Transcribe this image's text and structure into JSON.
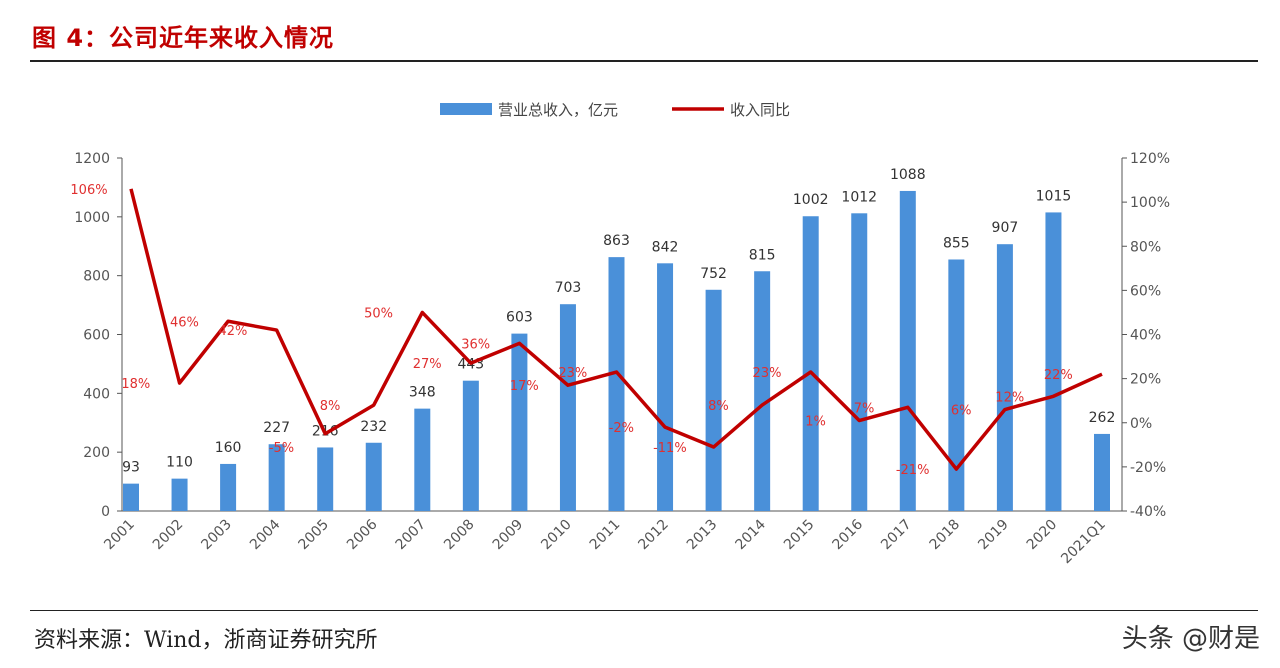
{
  "title": "图 4：公司近年来收入情况",
  "source": "资料来源：Wind，浙商证券研究所",
  "watermark": "头条 @财是",
  "chart_data": {
    "type": "bar+line",
    "categories": [
      "2001",
      "2002",
      "2003",
      "2004",
      "2005",
      "2006",
      "2007",
      "2008",
      "2009",
      "2010",
      "2011",
      "2012",
      "2013",
      "2014",
      "2015",
      "2016",
      "2017",
      "2018",
      "2019",
      "2020",
      "2021Q1"
    ],
    "series": [
      {
        "name": "营业总收入，亿元",
        "type": "bar",
        "axis": "left",
        "color": "#4a90d9",
        "values": [
          93,
          110,
          160,
          227,
          216,
          232,
          348,
          443,
          603,
          703,
          863,
          842,
          752,
          815,
          1002,
          1012,
          1088,
          855,
          907,
          1015,
          262
        ]
      },
      {
        "name": "收入同比",
        "type": "line",
        "axis": "right",
        "color": "#c00000",
        "values": [
          106,
          18,
          46,
          42,
          -5,
          8,
          50,
          27,
          36,
          17,
          23,
          -2,
          -11,
          8,
          23,
          1,
          7,
          -21,
          6,
          12,
          22
        ]
      }
    ],
    "y_left": {
      "range": [
        0,
        1200
      ],
      "ticks": [
        "0",
        "200",
        "400",
        "600",
        "800",
        "1000",
        "1200"
      ]
    },
    "y_right": {
      "range": [
        -40,
        120
      ],
      "ticks": [
        "-40%",
        "-20%",
        "0%",
        "20%",
        "40%",
        "60%",
        "80%",
        "100%",
        "120%"
      ]
    },
    "legend_position": "top",
    "grid": false
  }
}
